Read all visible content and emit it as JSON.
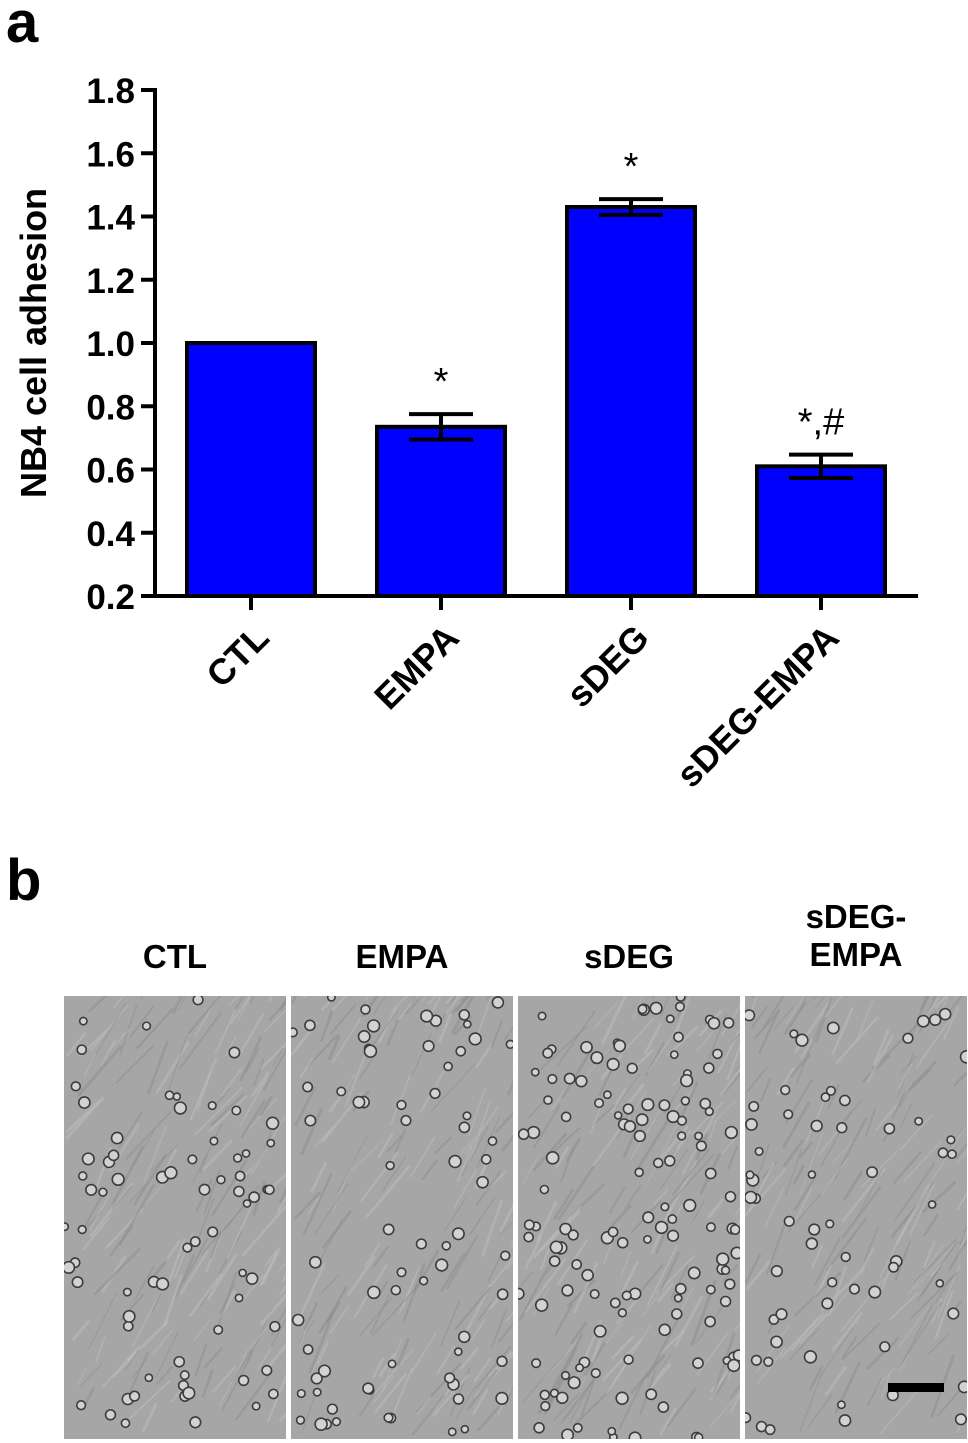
{
  "panels": {
    "a": "a",
    "b": "b"
  },
  "chart_data": {
    "type": "bar",
    "ylabel": "NB4 cell adhesion",
    "categories": [
      "CTL",
      "EMPA",
      "sDEG",
      "sDEG-EMPA"
    ],
    "values": [
      1.0,
      0.735,
      1.43,
      0.61
    ],
    "errors": [
      0.0,
      0.04,
      0.025,
      0.037
    ],
    "annotations": [
      "",
      "*",
      "*",
      "*,#"
    ],
    "ylim": [
      0.2,
      1.8
    ],
    "yticks": [
      "0.2",
      "0.4",
      "0.6",
      "0.8",
      "1.0",
      "1.2",
      "1.4",
      "1.6",
      "1.8"
    ],
    "bar_color": "#0000ff",
    "grid": false,
    "legend": "none"
  },
  "micrographs": [
    {
      "label": "CTL",
      "density": 70
    },
    {
      "label": "EMPA",
      "density": 70
    },
    {
      "label": "sDEG",
      "density": 130
    },
    {
      "label": "sDEG-\nEMPA",
      "density": 60
    }
  ]
}
